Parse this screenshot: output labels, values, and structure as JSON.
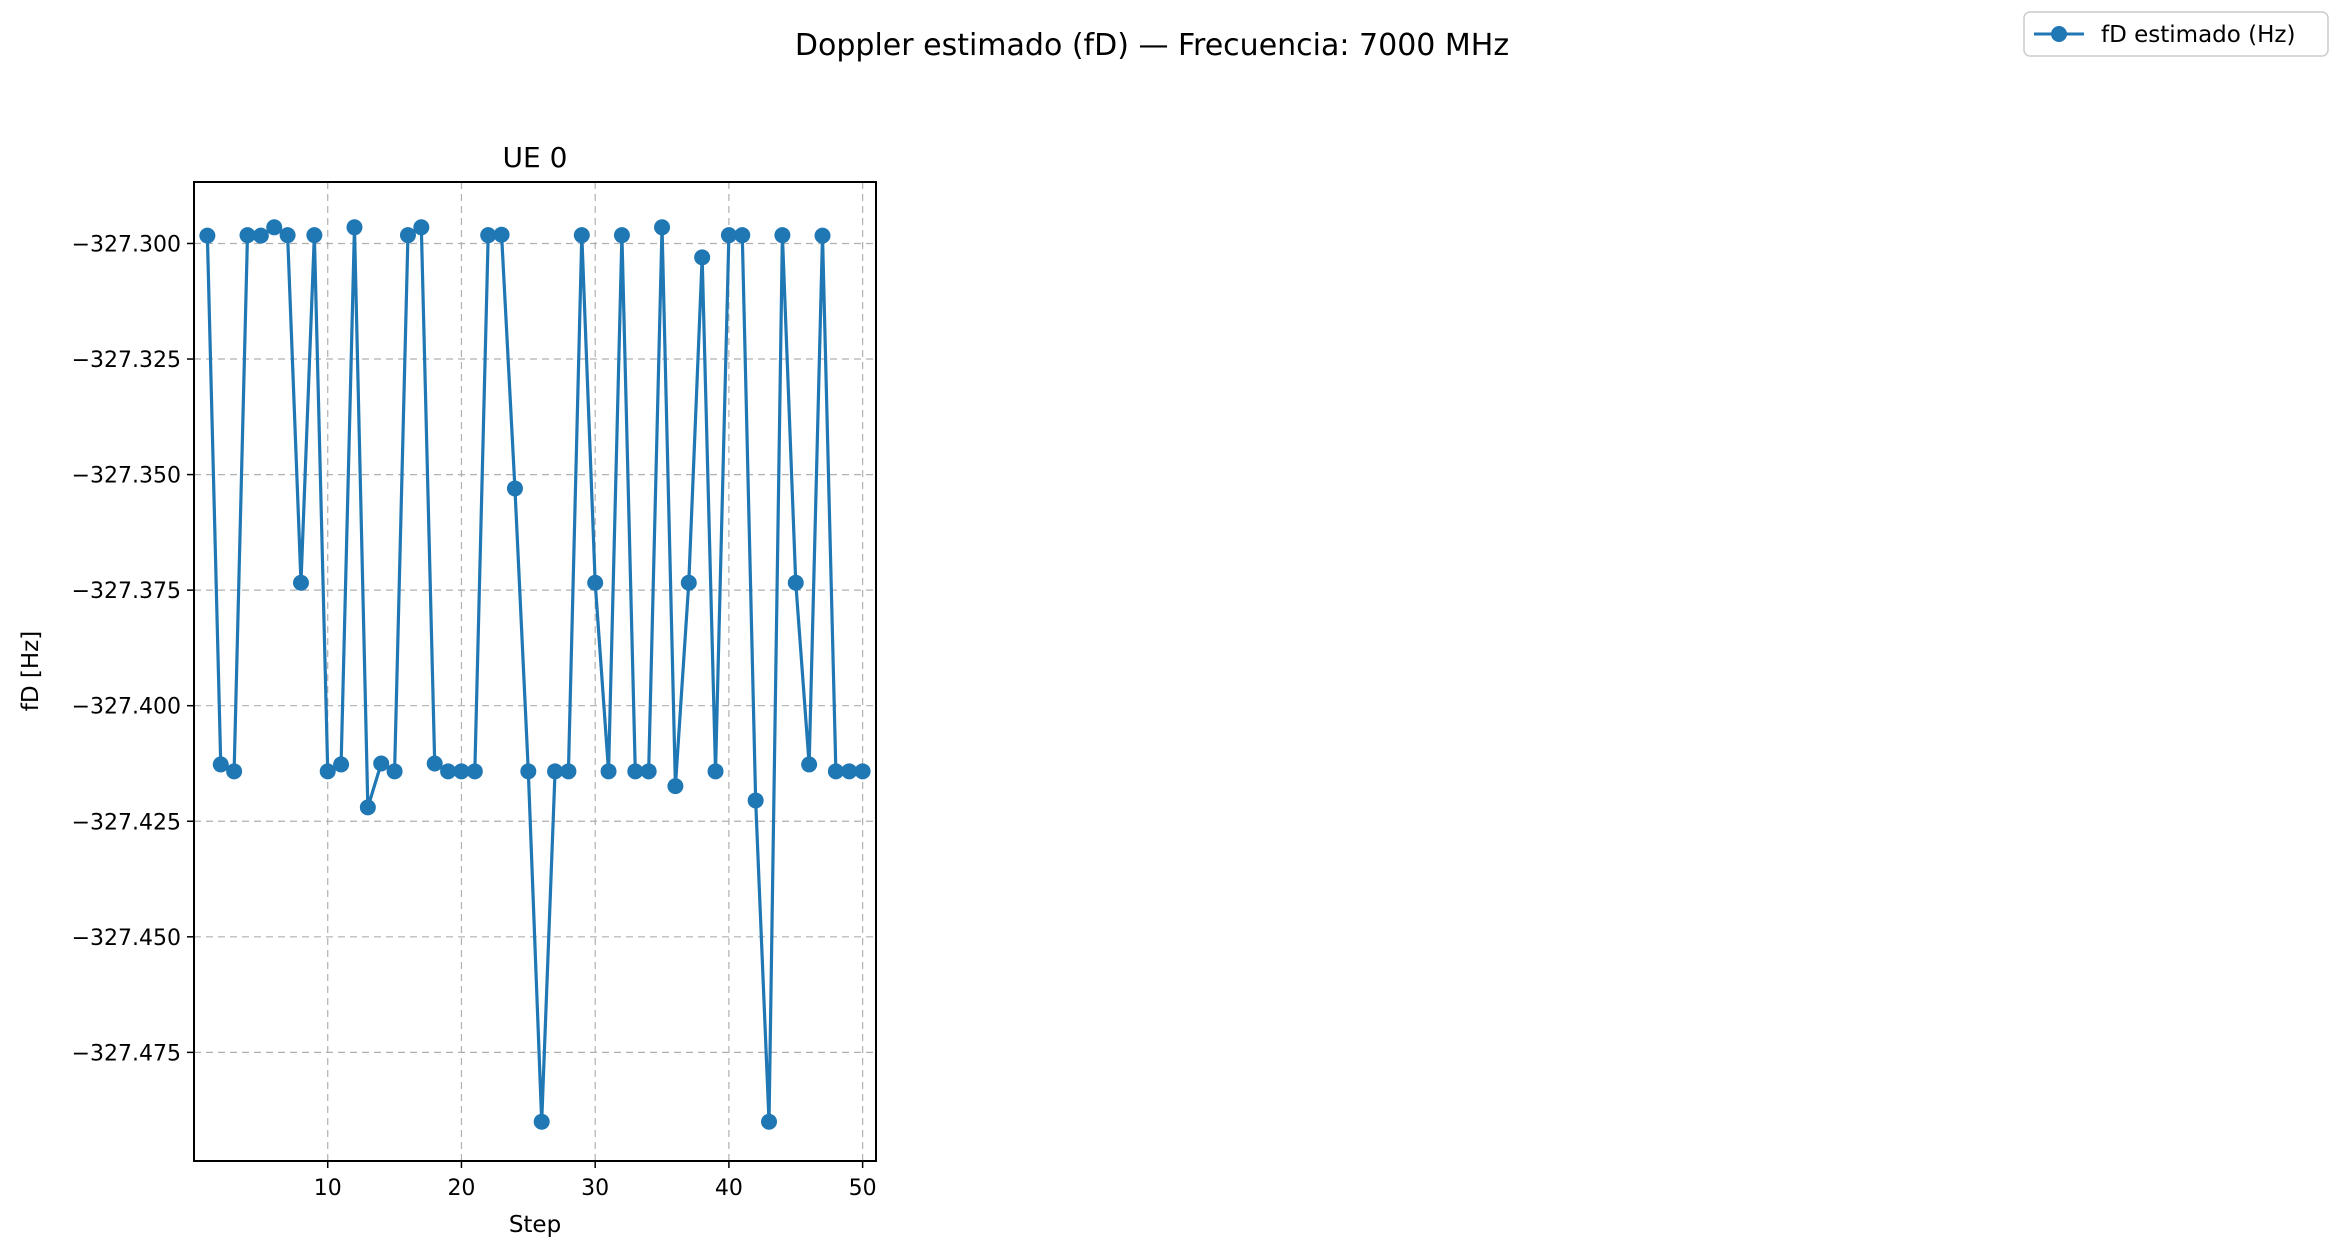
{
  "figure": {
    "suptitle": "Doppler estimado (fD) — Frecuencia: 7000 MHz",
    "legend_label": "fD estimado (Hz)",
    "legend_position": "top-right"
  },
  "chart_data": {
    "type": "line",
    "title": "UE 0",
    "xlabel": "Step",
    "ylabel": "fD [Hz]",
    "xlim": [
      0,
      51
    ],
    "ylim": [
      -327.4985,
      -327.2867
    ],
    "grid": true,
    "marker": "circle",
    "color": "#1f77b4",
    "x_ticks": [
      10,
      20,
      30,
      40,
      50
    ],
    "x_tick_labels": [
      "10",
      "20",
      "30",
      "40",
      "50"
    ],
    "y_ticks": [
      -327.3,
      -327.325,
      -327.35,
      -327.375,
      -327.4,
      -327.425,
      -327.45,
      -327.475
    ],
    "y_tick_labels": [
      "−327.300",
      "−327.325",
      "−327.350",
      "−327.375",
      "−327.400",
      "−327.425",
      "−327.450",
      "−327.475"
    ],
    "series": [
      {
        "name": "fD estimado (Hz)",
        "x": [
          1,
          2,
          3,
          4,
          5,
          6,
          7,
          8,
          9,
          10,
          11,
          12,
          13,
          14,
          15,
          16,
          17,
          18,
          19,
          20,
          21,
          22,
          23,
          24,
          25,
          26,
          27,
          28,
          29,
          30,
          31,
          32,
          33,
          34,
          35,
          36,
          37,
          38,
          39,
          40,
          41,
          42,
          43,
          44,
          45,
          46,
          47,
          48,
          49,
          50
        ],
        "values": [
          -327.2983,
          -327.4127,
          -327.4142,
          -327.2982,
          -327.2983,
          -327.2965,
          -327.2982,
          -327.3734,
          -327.2982,
          -327.4142,
          -327.4127,
          -327.2965,
          -327.422,
          -327.4125,
          -327.4142,
          -327.2982,
          -327.2965,
          -327.4125,
          -327.4142,
          -327.4142,
          -327.4142,
          -327.2982,
          -327.2981,
          -327.353,
          -327.4142,
          -327.49,
          -327.4142,
          -327.4142,
          -327.2982,
          -327.3734,
          -327.4142,
          -327.2982,
          -327.4142,
          -327.4142,
          -327.2965,
          -327.4174,
          -327.3734,
          -327.303,
          -327.4142,
          -327.2982,
          -327.2982,
          -327.4205,
          -327.49,
          -327.2982,
          -327.3734,
          -327.4127,
          -327.2983,
          -327.4142,
          -327.4142,
          -327.4142
        ]
      }
    ]
  }
}
